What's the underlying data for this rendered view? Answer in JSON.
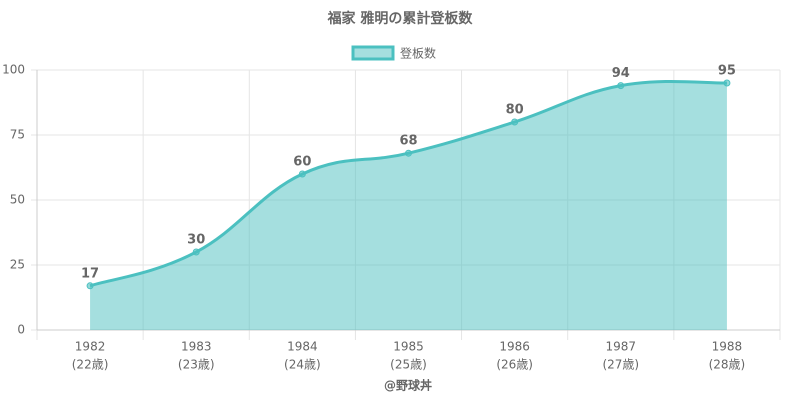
{
  "chart_data": {
    "type": "area",
    "title": "福家 雅明の累計登板数",
    "categories": [
      [
        "1982",
        "(22歳)"
      ],
      [
        "1983",
        "(23歳)"
      ],
      [
        "1984",
        "(24歳)"
      ],
      [
        "1985",
        "(25歳)"
      ],
      [
        "1986",
        "(26歳)"
      ],
      [
        "1987",
        "(27歳)"
      ],
      [
        "1988",
        "(28歳)"
      ]
    ],
    "series": [
      {
        "name": "登板数",
        "color": "#4bc0c0",
        "values": [
          17,
          30,
          60,
          68,
          80,
          94,
          95
        ]
      }
    ],
    "ylim": [
      0,
      100
    ],
    "yticks": [
      0,
      25,
      50,
      75,
      100
    ],
    "grid": true,
    "x_label": "@野球丼",
    "legend": "top"
  }
}
